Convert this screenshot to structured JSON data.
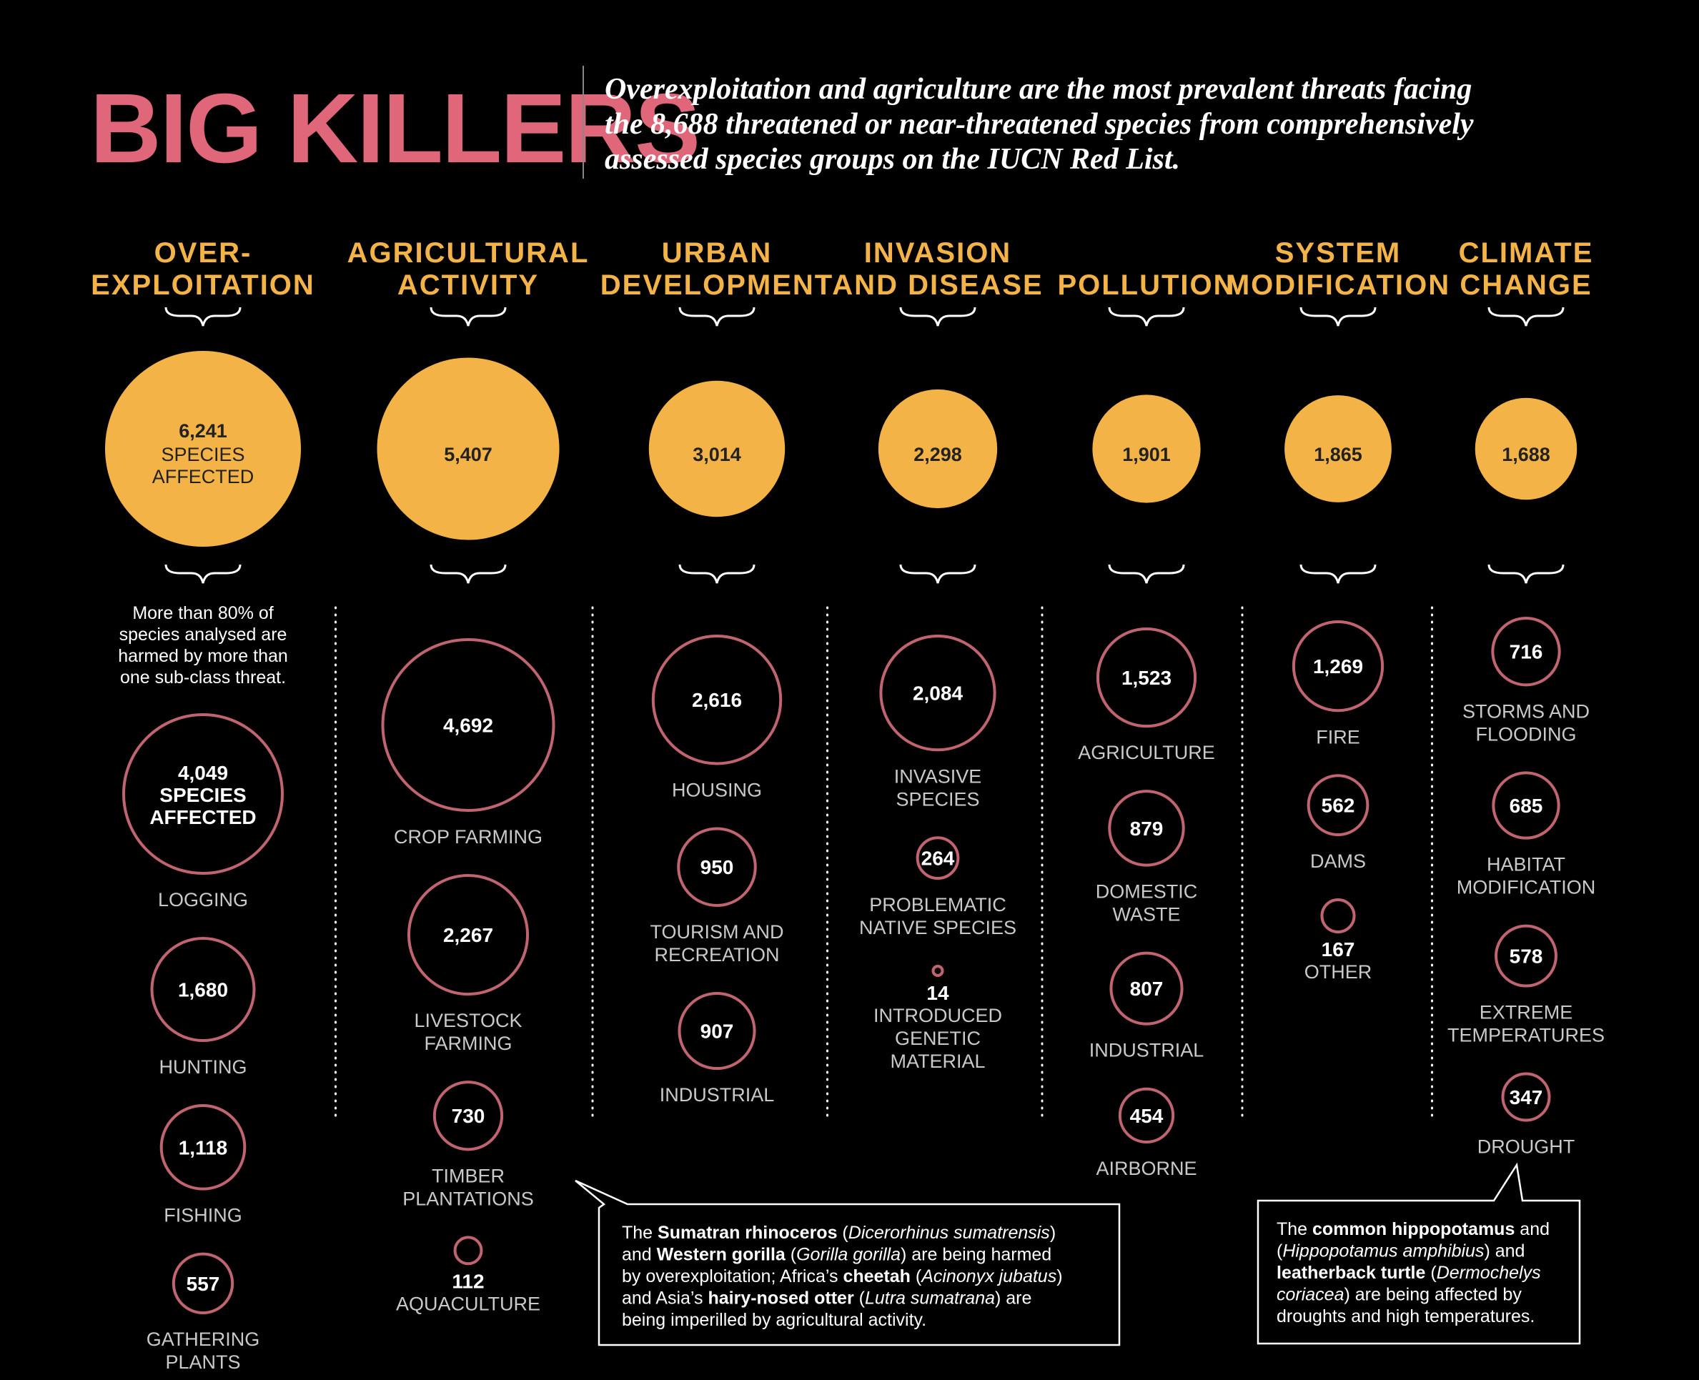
{
  "title": "BIG KILLERS",
  "subtitle_lines": [
    "Overexploitation and agriculture are the most prevalent threats facing",
    "the 8,688 threatened or near-threatened species from comprehensively",
    "assessed species groups on the IUCN Red List."
  ],
  "colors": {
    "title": "#e0677a",
    "category": "#f4b347",
    "main_circle": "#f4b347",
    "sub_circle_stroke": "#c0646f",
    "sub_label": "#c9c9c9"
  },
  "chart_data": {
    "type": "bubble",
    "unit": "species",
    "categories": [
      {
        "name_lines": [
          "OVER-",
          "EXPLOITATION"
        ],
        "value": 6241,
        "value_label": "6,241",
        "value_sub": [
          "SPECIES",
          "AFFECTED"
        ],
        "note": [
          "More than 80% of",
          "species analysed are",
          "harmed by more than",
          "one sub-class threat."
        ],
        "subs": [
          {
            "value": 4049,
            "value_label": "4,049",
            "inner": [
              "SPECIES",
              "AFFECTED"
            ],
            "label": [
              "LOGGING"
            ]
          },
          {
            "value": 1680,
            "value_label": "1,680",
            "label": [
              "HUNTING"
            ]
          },
          {
            "value": 1118,
            "value_label": "1,118",
            "label": [
              "FISHING"
            ]
          },
          {
            "value": 557,
            "value_label": "557",
            "label": [
              "GATHERING",
              "PLANTS"
            ]
          }
        ]
      },
      {
        "name_lines": [
          "AGRICULTURAL",
          "ACTIVITY"
        ],
        "value": 5407,
        "value_label": "5,407",
        "subs": [
          {
            "value": 4692,
            "value_label": "4,692",
            "label": [
              "CROP FARMING"
            ]
          },
          {
            "value": 2267,
            "value_label": "2,267",
            "label": [
              "LIVESTOCK",
              "FARMING"
            ]
          },
          {
            "value": 730,
            "value_label": "730",
            "label": [
              "TIMBER",
              "PLANTATIONS"
            ]
          },
          {
            "value": 112,
            "value_label": "112",
            "label": [
              "AQUACULTURE"
            ]
          }
        ]
      },
      {
        "name_lines": [
          "URBAN",
          "DEVELOPMENT"
        ],
        "value": 3014,
        "value_label": "3,014",
        "subs": [
          {
            "value": 2616,
            "value_label": "2,616",
            "label": [
              "HOUSING"
            ]
          },
          {
            "value": 950,
            "value_label": "950",
            "label": [
              "TOURISM AND",
              "RECREATION"
            ]
          },
          {
            "value": 907,
            "value_label": "907",
            "label": [
              "INDUSTRIAL"
            ]
          }
        ]
      },
      {
        "name_lines": [
          "INVASION",
          "AND DISEASE"
        ],
        "value": 2298,
        "value_label": "2,298",
        "subs": [
          {
            "value": 2084,
            "value_label": "2,084",
            "label": [
              "INVASIVE",
              "SPECIES"
            ]
          },
          {
            "value": 264,
            "value_label": "264",
            "label": [
              "PROBLEMATIC",
              "NATIVE SPECIES"
            ]
          },
          {
            "value": 14,
            "value_label": "14",
            "label": [
              "INTRODUCED",
              "GENETIC",
              "MATERIAL"
            ]
          }
        ]
      },
      {
        "name_lines": [
          "POLLUTION"
        ],
        "value": 1901,
        "value_label": "1,901",
        "subs": [
          {
            "value": 1523,
            "value_label": "1,523",
            "label": [
              "AGRICULTURE"
            ]
          },
          {
            "value": 879,
            "value_label": "879",
            "label": [
              "DOMESTIC",
              "WASTE"
            ]
          },
          {
            "value": 807,
            "value_label": "807",
            "label": [
              "INDUSTRIAL"
            ]
          },
          {
            "value": 454,
            "value_label": "454",
            "label": [
              "AIRBORNE"
            ]
          }
        ]
      },
      {
        "name_lines": [
          "SYSTEM",
          "MODIFICATION"
        ],
        "value": 1865,
        "value_label": "1,865",
        "subs": [
          {
            "value": 1269,
            "value_label": "1,269",
            "label": [
              "FIRE"
            ]
          },
          {
            "value": 562,
            "value_label": "562",
            "label": [
              "DAMS"
            ]
          },
          {
            "value": 167,
            "value_label": "167",
            "label": [
              "OTHER"
            ]
          }
        ]
      },
      {
        "name_lines": [
          "CLIMATE",
          "CHANGE"
        ],
        "value": 1688,
        "value_label": "1,688",
        "subs": [
          {
            "value": 716,
            "value_label": "716",
            "label": [
              "STORMS AND",
              "FLOODING"
            ]
          },
          {
            "value": 685,
            "value_label": "685",
            "label": [
              "HABITAT",
              "MODIFICATION"
            ]
          },
          {
            "value": 578,
            "value_label": "578",
            "label": [
              "EXTREME",
              "TEMPERATURES"
            ]
          },
          {
            "value": 347,
            "value_label": "347",
            "label": [
              "DROUGHT"
            ]
          }
        ]
      }
    ]
  },
  "callouts": [
    {
      "lines": [
        [
          [
            "The ",
            ""
          ],
          [
            "Sumatran rhinoceros",
            "b"
          ],
          [
            " (",
            ""
          ],
          [
            "Dicerorhinus sumatrensis",
            "i"
          ],
          [
            ")",
            ""
          ]
        ],
        [
          [
            "and ",
            ""
          ],
          [
            "Western gorilla",
            "b"
          ],
          [
            " (",
            ""
          ],
          [
            "Gorilla gorilla",
            "i"
          ],
          [
            ") are being harmed",
            ""
          ]
        ],
        [
          [
            "by overexploitation; Africa’s ",
            ""
          ],
          [
            "cheetah",
            "b"
          ],
          [
            " (",
            ""
          ],
          [
            "Acinonyx jubatus",
            "i"
          ],
          [
            ")",
            ""
          ]
        ],
        [
          [
            "and Asia’s ",
            ""
          ],
          [
            "hairy-nosed otter",
            "b"
          ],
          [
            " (",
            ""
          ],
          [
            "Lutra sumatrana",
            "i"
          ],
          [
            ") are",
            ""
          ]
        ],
        [
          [
            "being imperilled by agricultural activity.",
            ""
          ]
        ]
      ]
    },
    {
      "lines": [
        [
          [
            "The ",
            ""
          ],
          [
            "common hippopotamus",
            "b"
          ],
          [
            " and",
            ""
          ]
        ],
        [
          [
            "(",
            ""
          ],
          [
            "Hippopotamus amphibius",
            "i"
          ],
          [
            ") and",
            ""
          ]
        ],
        [
          [
            "leatherback turtle",
            "b"
          ],
          [
            " (",
            ""
          ],
          [
            "Dermochelys",
            "i"
          ]
        ],
        [
          [
            "coriacea",
            "i"
          ],
          [
            ") are being affected by",
            ""
          ]
        ],
        [
          [
            "droughts and high temperatures.",
            ""
          ]
        ]
      ]
    }
  ]
}
